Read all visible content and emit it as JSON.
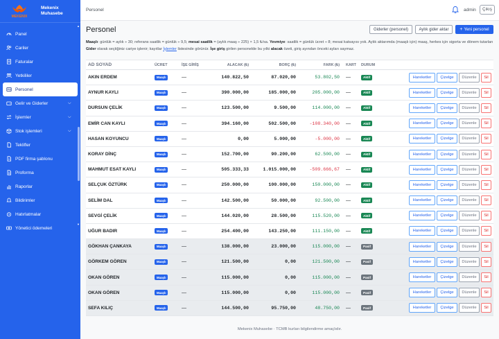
{
  "brand": {
    "name_line1": "Mekenix",
    "name_line2": "Muhasebe",
    "logo_text": "MEKENIX"
  },
  "sidebar": {
    "items": [
      {
        "label": "Panel",
        "icon": "gauge-icon",
        "active": false,
        "chevron": false
      },
      {
        "label": "Cariler",
        "icon": "users-icon",
        "active": false,
        "chevron": false
      },
      {
        "label": "Faturalar",
        "icon": "invoice-icon",
        "active": false,
        "chevron": false
      },
      {
        "label": "Yetkililer",
        "icon": "people-icon",
        "active": false,
        "chevron": false
      },
      {
        "label": "Personel",
        "icon": "id-card-icon",
        "active": true,
        "chevron": false
      },
      {
        "label": "Gelir ve Giderler",
        "icon": "wallet-icon",
        "active": false,
        "chevron": true
      },
      {
        "label": "İşlemler",
        "icon": "transfer-icon",
        "active": false,
        "chevron": true
      },
      {
        "label": "Stok işlemleri",
        "icon": "box-icon",
        "active": false,
        "chevron": true
      },
      {
        "label": "Teklifler",
        "icon": "file-icon",
        "active": false,
        "chevron": false
      },
      {
        "label": "PDF firma şablonu",
        "icon": "file-pdf-icon",
        "active": false,
        "chevron": false
      },
      {
        "label": "Proforma",
        "icon": "file-text-icon",
        "active": false,
        "chevron": false
      },
      {
        "label": "Raporlar",
        "icon": "chart-icon",
        "active": false,
        "chevron": false
      },
      {
        "label": "Bildirimler",
        "icon": "bell-icon",
        "active": false,
        "chevron": false
      },
      {
        "label": "Hatırlatmalar",
        "icon": "alarm-icon",
        "active": false,
        "chevron": false
      },
      {
        "label": "Yönetici ödemeleri",
        "icon": "cash-icon",
        "active": false,
        "chevron": false
      }
    ]
  },
  "topbar": {
    "breadcrumb": "Personel",
    "user": "admin",
    "logout": "Çıkış"
  },
  "page": {
    "title": "Personel",
    "btn_expenses": "Giderler (personel)",
    "btn_monthly": "Aylık gider aktar",
    "btn_new": "Yeni personel",
    "desc": {
      "t1": "Maaşlı",
      "t2": ": günlük = aylık ÷ 30; referans saatlik = günlük ÷ 9,5; ",
      "t3": "mesai saatlik",
      "t4": " = (aylık maaş ÷ 225) × 1,5 ₺/sa. ",
      "t5": "Yevmiye",
      "t6": ": saatlik = günlük ücret ÷ 8; mesai katsayısı yok. Aylık aktarımda (maaşlı için) maaş, herkes için sigorta ve dönem tutarları ",
      "t7": "Gider",
      "t8": " olarak seçtiğiniz cariye işlenir; kayıtlar ",
      "t9": "İşlemler",
      "t10": " listesinde görünür. ",
      "t11": "İşe giriş",
      "t12": " girilen personelde bu yılki ",
      "t13": "alacak",
      "t14": " özeti, giriş ayından önceki ayları saymaz."
    }
  },
  "colors": {
    "primary": "#2563eb",
    "active_badge": "#198754",
    "passive_badge": "#6c757d",
    "positive": "#198754",
    "negative": "#dc3545"
  },
  "table": {
    "headers": {
      "name": "AD SOYAD",
      "wage": "ÜCRET",
      "login": "İŞE GİRİŞ",
      "recv": "ALACAK (₺)",
      "debt": "BORÇ (₺)",
      "diff": "FARK (₺)",
      "card": "KART",
      "status": "DURUM"
    },
    "actions": {
      "b1": "Hareketler",
      "b2": "Çizelge",
      "b3": "Düzenle",
      "b4": "Sil"
    },
    "rows": [
      {
        "name": "AKIN ERDEM",
        "wage": "Maaşlı",
        "login": "—",
        "recv": "140.822,50",
        "debt": "87.020,00",
        "diff": "53.802,50",
        "sign": "pos",
        "card": "—",
        "status": "Aktif"
      },
      {
        "name": "AYNUR KAYLI",
        "wage": "Maaşlı",
        "login": "—",
        "recv": "390.000,00",
        "debt": "185.000,00",
        "diff": "205.000,00",
        "sign": "pos",
        "card": "—",
        "status": "Aktif"
      },
      {
        "name": "DURSUN ÇELİK",
        "wage": "Maaşlı",
        "login": "—",
        "recv": "123.500,00",
        "debt": "9.500,00",
        "diff": "114.000,00",
        "sign": "pos",
        "card": "—",
        "status": "Aktif"
      },
      {
        "name": "EMİR CAN KAYLI",
        "wage": "Maaşlı",
        "login": "—",
        "recv": "394.160,00",
        "debt": "502.500,00",
        "diff": "-108.340,00",
        "sign": "neg",
        "card": "—",
        "status": "Aktif"
      },
      {
        "name": "HASAN KOYUNCU",
        "wage": "Maaşlı",
        "login": "—",
        "recv": "0,00",
        "debt": "5.000,00",
        "diff": "-5.000,00",
        "sign": "neg",
        "card": "—",
        "status": "Aktif"
      },
      {
        "name": "KORAY DİNÇ",
        "wage": "Maaşlı",
        "login": "—",
        "recv": "152.700,00",
        "debt": "90.200,00",
        "diff": "62.500,00",
        "sign": "pos",
        "card": "—",
        "status": "Aktif"
      },
      {
        "name": "MAHMUT ESAT KAYLI",
        "wage": "Maaşlı",
        "login": "—",
        "recv": "505.333,33",
        "debt": "1.015.000,00",
        "diff": "-509.666,67",
        "sign": "neg",
        "card": "—",
        "status": "Aktif"
      },
      {
        "name": "SELÇUK ÖZTÜRK",
        "wage": "Maaşlı",
        "login": "—",
        "recv": "250.000,00",
        "debt": "100.000,00",
        "diff": "150.000,00",
        "sign": "pos",
        "card": "—",
        "status": "Aktif"
      },
      {
        "name": "SELİM DAL",
        "wage": "Maaşlı",
        "login": "—",
        "recv": "142.500,00",
        "debt": "50.000,00",
        "diff": "92.500,00",
        "sign": "pos",
        "card": "—",
        "status": "Aktif"
      },
      {
        "name": "SEVGİ ÇELİK",
        "wage": "Maaşlı",
        "login": "—",
        "recv": "144.020,00",
        "debt": "28.500,00",
        "diff": "115.520,00",
        "sign": "pos",
        "card": "—",
        "status": "Aktif"
      },
      {
        "name": "UĞUR BADIR",
        "wage": "Maaşlı",
        "login": "—",
        "recv": "254.400,00",
        "debt": "143.250,00",
        "diff": "111.150,00",
        "sign": "pos",
        "card": "—",
        "status": "Aktif"
      },
      {
        "name": "GÖKHAN ÇANKAYA",
        "wage": "Maaşlı",
        "login": "—",
        "recv": "138.000,00",
        "debt": "23.000,00",
        "diff": "115.000,00",
        "sign": "pos",
        "card": "—",
        "status": "Pasif"
      },
      {
        "name": "GÖRKEM GÖREN",
        "wage": "Maaşlı",
        "login": "—",
        "recv": "121.500,00",
        "debt": "0,00",
        "diff": "121.500,00",
        "sign": "pos",
        "card": "—",
        "status": "Pasif"
      },
      {
        "name": "OKAN GÖREN",
        "wage": "Maaşlı",
        "login": "—",
        "recv": "115.000,00",
        "debt": "0,00",
        "diff": "115.000,00",
        "sign": "pos",
        "card": "—",
        "status": "Pasif"
      },
      {
        "name": "OKAN GÖREN",
        "wage": "Maaşlı",
        "login": "—",
        "recv": "115.000,00",
        "debt": "0,00",
        "diff": "115.000,00",
        "sign": "pos",
        "card": "—",
        "status": "Pasif"
      },
      {
        "name": "SEFA KILIÇ",
        "wage": "Maaşlı",
        "login": "—",
        "recv": "144.500,00",
        "debt": "95.750,00",
        "diff": "48.750,00",
        "sign": "pos",
        "card": "—",
        "status": "Pasif"
      }
    ]
  },
  "footer": "Mekenix Muhasebe · TCMB kurları bilgilendirme amaçlıdır."
}
